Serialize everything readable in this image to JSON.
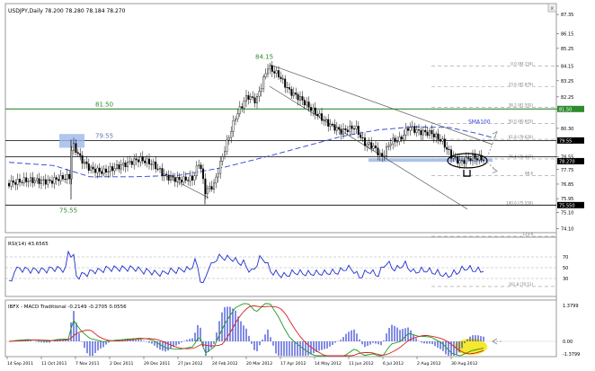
{
  "window": {
    "title": "USDJPY,Daily  78.200 78.280 78.184 78.270",
    "corner_close": "x"
  },
  "main_chart": {
    "price_axis_ticks": [
      "87.35",
      "86.15",
      "85.25",
      "84.15",
      "83.25",
      "82.25",
      "81.50",
      "80.30",
      "79.45",
      "78.55",
      "77.75",
      "76.85",
      "75.95",
      "75.10",
      "74.10"
    ],
    "price_badges": [
      {
        "label": "81.50",
        "color": "#2e8b2e",
        "price": 81.5
      },
      {
        "label": "79.55",
        "color": "#000000",
        "price": 79.55
      },
      {
        "label": "78.270",
        "color": "#000000",
        "price": 78.27
      },
      {
        "label": "75.550",
        "color": "#000000",
        "price": 75.55
      }
    ],
    "fib_levels": [
      {
        "label": "0.0 (84.154)",
        "price": 84.154
      },
      {
        "label": "23.6 (82.879)",
        "price": 82.879
      },
      {
        "label": "38.2 (81.592)",
        "price": 81.592
      },
      {
        "label": "50.0 (80.603)",
        "price": 80.603
      },
      {
        "label": "61.8 (79.626)",
        "price": 79.626
      },
      {
        "label": "76.4 (78.407)",
        "price": 78.407
      },
      {
        "label": "88.6",
        "price": 77.37
      },
      {
        "label": "100.0 (75.550)",
        "price": 75.55
      },
      {
        "label": "123.6",
        "price": 73.62
      },
      {
        "label": "161.8 (70.51)",
        "price": 70.51
      }
    ],
    "annotations": {
      "high_label": "84.15",
      "low_label": "75.55",
      "level_81": "81.50",
      "level_79": "79.55",
      "sma_label": "SMA100"
    },
    "colors": {
      "resistance_line": "#2e8b2e",
      "sma": "#2b3fd6",
      "highlight_box": "#9db8e8",
      "channel": "#555555"
    }
  },
  "rsi_panel": {
    "title": "RSI(14) 43.6565",
    "levels": [
      "70",
      "50",
      "30"
    ],
    "line_color": "#1f2fd0"
  },
  "macd_panel": {
    "title": "IBFX - MACD Traditional -0.2149 -0.2705 0.0556",
    "top_value": "1.3799",
    "zero_value": "0.00",
    "bottom_value": "-1.3799",
    "macd_color": "#1a9a1a",
    "signal_color": "#d42020",
    "histogram_color": "#1f2fd0",
    "highlight_color": "#f5e51a"
  },
  "time_axis": {
    "labels": [
      "14 Sep 2011",
      "11 Oct 2011",
      "7 Nov 2011",
      "2 Dec 2011",
      "29 Dec 2011",
      "27 Jan 2012",
      "24 Feb 2012",
      "20 Mar 2012",
      "17 Apr 2012",
      "14 May 2012",
      "11 Jun 2012",
      "6 Jul 2012",
      "2 Aug 2012",
      "30 Aug 2012"
    ]
  }
}
